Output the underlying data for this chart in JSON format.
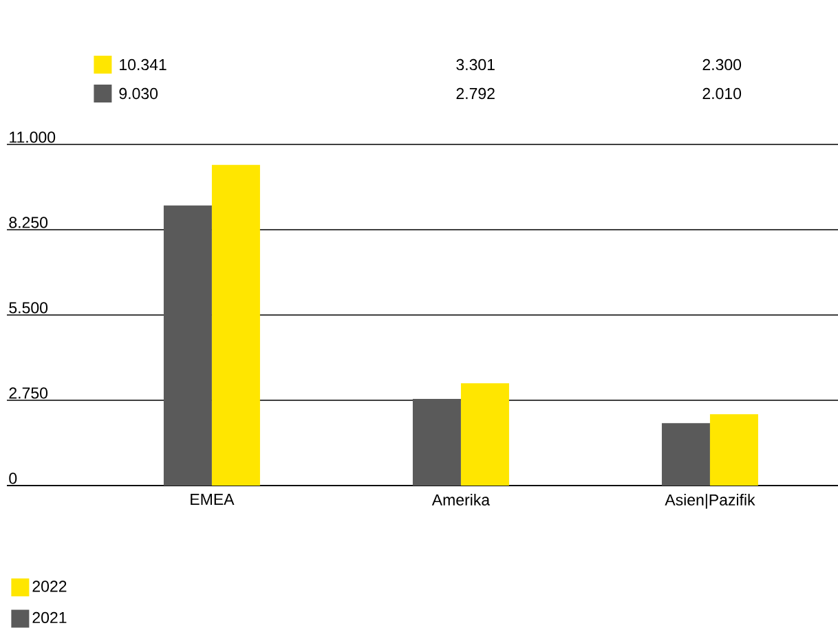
{
  "chart_data": {
    "type": "bar",
    "categories": [
      "EMEA",
      "Amerika",
      "Asien|Pazifik"
    ],
    "series": [
      {
        "name": "2021",
        "color": "#5a5a5a",
        "values": [
          9030,
          2792,
          2010
        ],
        "value_labels": [
          "9.030",
          "2.792",
          "2.010"
        ]
      },
      {
        "name": "2022",
        "color": "#ffe600",
        "values": [
          10341,
          3301,
          2300
        ],
        "value_labels": [
          "10.341",
          "3.301",
          "2.300"
        ]
      }
    ],
    "ylim": [
      0,
      11000
    ],
    "yticks": [
      0,
      {
        "value": 2750,
        "label": "2.750"
      },
      {
        "value": 5500,
        "label": "5.500"
      },
      {
        "value": 8250,
        "label": "8.250"
      },
      {
        "value": 11000,
        "label": "11.000"
      }
    ],
    "grid": "y",
    "legend": "bottom left"
  }
}
